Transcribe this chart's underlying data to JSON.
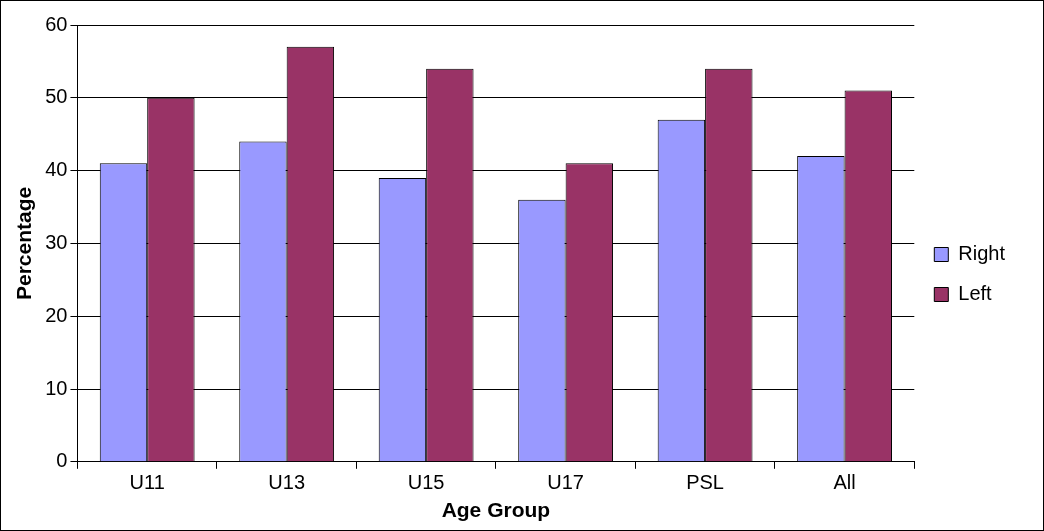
{
  "chart_data": {
    "type": "bar",
    "xlabel": "Age Group",
    "ylabel": "Percentage",
    "categories": [
      "U11",
      "U13",
      "U15",
      "U17",
      "PSL",
      "All"
    ],
    "series": [
      {
        "name": "Right",
        "color": "#9999ff",
        "values": [
          41,
          44,
          39,
          36,
          47,
          42
        ]
      },
      {
        "name": "Left",
        "color": "#993366",
        "values": [
          50,
          57,
          54,
          41,
          54,
          51
        ]
      }
    ],
    "ylim": [
      0,
      60
    ],
    "yticks": [
      0,
      10,
      20,
      30,
      40,
      50,
      60
    ],
    "grid": "y",
    "legend": "right"
  }
}
